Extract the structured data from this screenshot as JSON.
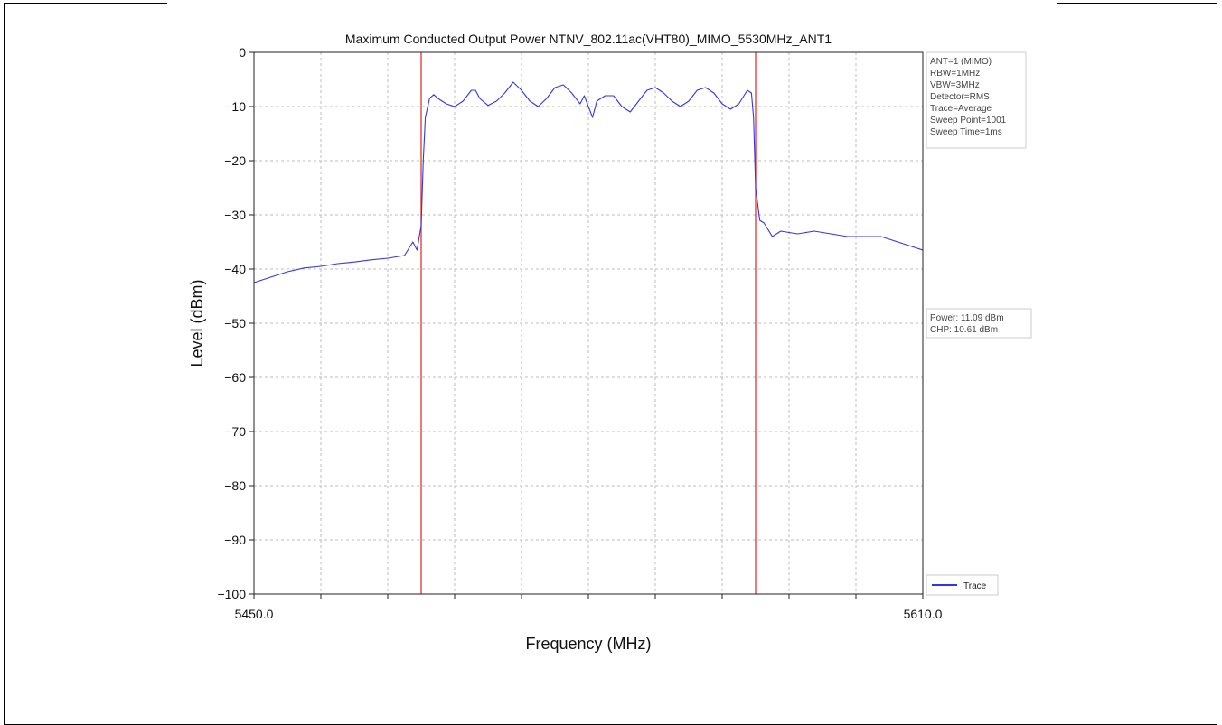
{
  "chart_data": {
    "type": "line",
    "title": "Maximum Conducted Output Power NTNV_802.11ac(VHT80)_MIMO_5530MHz_ANT1",
    "xlabel": "Frequency (MHz)",
    "ylabel": "Level (dBm)",
    "xlim": [
      5450.0,
      5610.0
    ],
    "ylim": [
      -100,
      0
    ],
    "x_tick_labels": [
      "5450.0",
      "5610.0"
    ],
    "y_ticks": [
      0,
      -10,
      -20,
      -30,
      -40,
      -50,
      -60,
      -70,
      -80,
      -90,
      -100
    ],
    "y_tick_labels": [
      "0",
      "−10",
      "−20",
      "−30",
      "−40",
      "−50",
      "−60",
      "−70",
      "−80",
      "−90",
      "−100"
    ],
    "grid": true,
    "legend_position": "bottom-right",
    "marker_lines": [
      5490.0,
      5570.0
    ],
    "marker_color": "#e8332f",
    "series": [
      {
        "name": "Trace",
        "color": "#3535e8",
        "x": [
          5450,
          5454,
          5458,
          5462,
          5466,
          5470,
          5474,
          5478,
          5482,
          5486,
          5488,
          5489,
          5490,
          5490.5,
          5491,
          5492,
          5493,
          5494,
          5496,
          5498,
          5500,
          5502,
          5503,
          5504,
          5506,
          5508,
          5510,
          5512,
          5514,
          5516,
          5518,
          5520,
          5522,
          5524,
          5526,
          5528,
          5529,
          5530,
          5531,
          5532,
          5534,
          5536,
          5538,
          5540,
          5542,
          5544,
          5546,
          5548,
          5550,
          5552,
          5554,
          5556,
          5558,
          5560,
          5562,
          5564,
          5566,
          5568,
          5569,
          5569.5,
          5570,
          5571,
          5572,
          5574,
          5576,
          5580,
          5584,
          5588,
          5592,
          5596,
          5600,
          5604,
          5608,
          5610
        ],
        "y": [
          -42.5,
          -41.5,
          -40.5,
          -39.8,
          -39.5,
          -39,
          -38.7,
          -38.3,
          -38,
          -37.5,
          -35,
          -36.5,
          -32,
          -20,
          -12,
          -8.5,
          -7.8,
          -8.5,
          -9.5,
          -10,
          -9,
          -7,
          -7,
          -8.5,
          -9.8,
          -9,
          -7.5,
          -5.5,
          -7,
          -9,
          -10,
          -8.5,
          -6.5,
          -6,
          -7.5,
          -9.5,
          -8,
          -10,
          -12,
          -9,
          -8,
          -8,
          -10,
          -11,
          -9,
          -7,
          -6.5,
          -7.5,
          -9,
          -10,
          -9,
          -7,
          -6.5,
          -7.5,
          -9.5,
          -10.5,
          -9.5,
          -7,
          -7.5,
          -12,
          -25,
          -31,
          -31.5,
          -34,
          -33,
          -33.5,
          -33,
          -33.5,
          -34,
          -34,
          -34,
          -35,
          -36,
          -36.5
        ]
      }
    ],
    "info_lines": [
      "ANT=1 (MIMO)",
      "RBW=1MHz",
      "VBW=3MHz",
      "Detector=RMS",
      "Trace=Average",
      "Sweep Point=1001",
      "Sweep Time=1ms"
    ],
    "power_lines": [
      "Power: 11.09 dBm",
      "CHP: 10.61 dBm"
    ]
  }
}
